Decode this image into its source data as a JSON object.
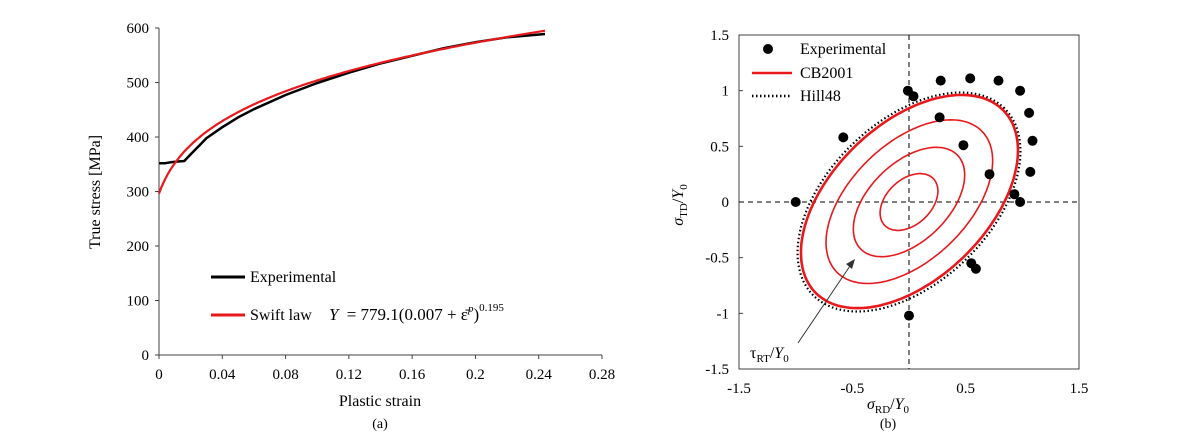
{
  "colors": {
    "experimental": "#000000",
    "model": "#e8191c",
    "axis": "#404040",
    "dashed": "#000000"
  },
  "chart_data": [
    {
      "type": "line",
      "panel_label": "(a)",
      "xlabel": "Plastic strain",
      "ylabel": "True stress [MPa]",
      "xlim": [
        0,
        0.28
      ],
      "ylim": [
        0,
        600
      ],
      "xticks": [
        0,
        0.04,
        0.08,
        0.12,
        0.16,
        0.2,
        0.24,
        0.28
      ],
      "xtick_labels": [
        "0",
        "0.04",
        "0.08",
        "0.12",
        "0.16",
        "0.2",
        "0.24",
        "0.28"
      ],
      "yticks": [
        0,
        100,
        200,
        300,
        400,
        500,
        600
      ],
      "ytick_labels": [
        "0",
        "100",
        "200",
        "300",
        "400",
        "500",
        "600"
      ],
      "legend": {
        "experimental": "Experimental",
        "swift": "Swift law",
        "formula": {
          "lhs": "Y",
          "rhs": "= 779.1(0.007 + ε̄",
          "sup_p": "p",
          "tail": ")",
          "exponent": "0.195"
        }
      },
      "series": [
        {
          "name": "Experimental",
          "x": [
            0,
            0.004,
            0.008,
            0.012,
            0.016,
            0.02,
            0.025,
            0.03,
            0.04,
            0.05,
            0.06,
            0.08,
            0.1,
            0.12,
            0.14,
            0.16,
            0.18,
            0.2,
            0.22,
            0.244
          ],
          "y": [
            352,
            352,
            354,
            355,
            356,
            368,
            383,
            398,
            418,
            436,
            451,
            477,
            499,
            518,
            535,
            549,
            563,
            574,
            583,
            589
          ]
        },
        {
          "name": "Swift law",
          "swift": {
            "K": 779.1,
            "e0": 0.007,
            "n": 0.195
          },
          "x_range": [
            0,
            0.244
          ]
        }
      ]
    },
    {
      "type": "scatter",
      "panel_label": "(b)",
      "xlabel": {
        "sym": "σ",
        "sub": "RD",
        "mid": "/",
        "y": "Y",
        "y_sub": "0"
      },
      "ylabel": {
        "sym": "σ",
        "sub": "TD",
        "mid": "/",
        "y": "Y",
        "y_sub": "0"
      },
      "xlim": [
        -1.5,
        1.5
      ],
      "ylim": [
        -1.5,
        1.5
      ],
      "xticks": [
        -1.5,
        -0.5,
        0.5,
        1.5
      ],
      "xtick_labels": [
        "-1.5",
        "-0.5",
        "0.5",
        "1.5"
      ],
      "yticks": [
        -1.5,
        -1,
        -0.5,
        0,
        0.5,
        1,
        1.5
      ],
      "ytick_labels": [
        "-1.5",
        "-1",
        "-0.5",
        "0",
        "0.5",
        "1",
        "1.5"
      ],
      "legend": [
        "Experimental",
        "CB2001",
        "Hill48"
      ],
      "annotation": {
        "sym": "τ",
        "sub": "RT",
        "mid": "/",
        "y": "Y",
        "y_sub": "0"
      },
      "experimental_points": [
        [
          -1.0,
          0.0
        ],
        [
          -0.58,
          0.58
        ],
        [
          -0.01,
          1.0
        ],
        [
          0.04,
          0.95
        ],
        [
          0.28,
          1.09
        ],
        [
          0.54,
          1.11
        ],
        [
          0.79,
          1.09
        ],
        [
          0.98,
          1.0
        ],
        [
          1.06,
          0.8
        ],
        [
          1.09,
          0.55
        ],
        [
          1.07,
          0.27
        ],
        [
          0.93,
          0.07
        ],
        [
          0.98,
          0.0
        ],
        [
          0.55,
          -0.55
        ],
        [
          0.59,
          -0.6
        ],
        [
          0.0,
          -1.02
        ],
        [
          0.27,
          0.76
        ],
        [
          0.48,
          0.51
        ],
        [
          0.71,
          0.25
        ]
      ],
      "contours": [
        {
          "name": "CB2001",
          "level": 1.0,
          "params": {
            "a": 1.165,
            "b": 0.69,
            "rot_deg": 45,
            "cx": 0.004,
            "cy": 0.004
          }
        },
        {
          "level": 0.75,
          "params": {
            "a": 0.9,
            "b": 0.52,
            "rot_deg": 45,
            "cx": 0.003,
            "cy": 0.003
          }
        },
        {
          "level": 0.5,
          "params": {
            "a": 0.6,
            "b": 0.35,
            "rot_deg": 45,
            "cx": 0.0,
            "cy": 0.0
          }
        },
        {
          "level": 0.25,
          "params": {
            "a": 0.3,
            "b": 0.2,
            "rot_deg": 45,
            "cx": 0.0,
            "cy": 0.0
          }
        }
      ],
      "hill48": {
        "name": "Hill48",
        "params": {
          "a": 1.19,
          "b": 0.72,
          "rot_deg": 45,
          "cx": 0.0,
          "cy": 0.0
        }
      }
    }
  ]
}
